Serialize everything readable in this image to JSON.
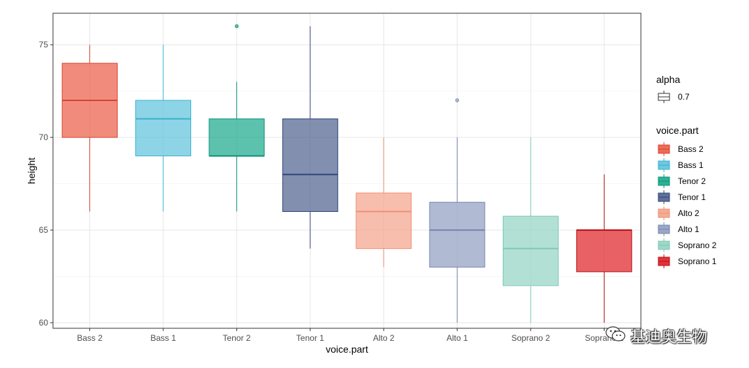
{
  "chart_data": {
    "type": "boxplot",
    "xlabel": "voice.part",
    "ylabel": "height",
    "ylim": [
      59.7,
      76.7
    ],
    "yticks": [
      60,
      65,
      70,
      75
    ],
    "grid": true,
    "legend_placement": "right",
    "categories": [
      "Bass 2",
      "Bass 1",
      "Tenor 2",
      "Tenor 1",
      "Alto 2",
      "Alto 1",
      "Soprano 2",
      "Soprano 1"
    ],
    "boxes": [
      {
        "name": "Bass 2",
        "min": 66,
        "q1": 70,
        "median": 72,
        "q3": 74,
        "max": 75,
        "outliers": [],
        "fill": "#EB5B46",
        "line": "#D6432E"
      },
      {
        "name": "Bass 1",
        "min": 66,
        "q1": 69,
        "median": 71,
        "q3": 72,
        "max": 75,
        "outliers": [],
        "fill": "#5CC3DC",
        "line": "#39B0CF"
      },
      {
        "name": "Tenor 2",
        "min": 66,
        "q1": 69,
        "median": 69,
        "q3": 71,
        "max": 73,
        "outliers": [
          76
        ],
        "fill": "#17A88C",
        "line": "#0D9276"
      },
      {
        "name": "Tenor 1",
        "min": 64,
        "q1": 66,
        "median": 68,
        "q3": 71,
        "max": 76,
        "outliers": [],
        "fill": "#4E5F8D",
        "line": "#2F447A"
      },
      {
        "name": "Alto 2",
        "min": 63,
        "q1": 64,
        "median": 66,
        "q3": 67,
        "max": 70,
        "outliers": [],
        "fill": "#F3A38B",
        "line": "#EF8E70"
      },
      {
        "name": "Alto 1",
        "min": 60,
        "q1": 63,
        "median": 65,
        "q3": 66.5,
        "max": 70,
        "outliers": [
          72
        ],
        "fill": "#8F9DBF",
        "line": "#7384AE"
      },
      {
        "name": "Soprano 2",
        "min": 60,
        "q1": 62,
        "median": 64,
        "q3": 65.75,
        "max": 70,
        "outliers": [],
        "fill": "#93D3C3",
        "line": "#7CC9B5"
      },
      {
        "name": "Soprano 1",
        "min": 60,
        "q1": 62.75,
        "median": 65,
        "q3": 65,
        "max": 68,
        "outliers": [],
        "fill": "#DE1E24",
        "line": "#B40F15"
      }
    ],
    "alpha": 0.7
  },
  "legend": {
    "alpha_title": "alpha",
    "alpha_label": "0.7",
    "voice_title": "voice.part",
    "items": [
      "Bass 2",
      "Bass 1",
      "Tenor 2",
      "Tenor 1",
      "Alto 2",
      "Alto 1",
      "Soprano 2",
      "Soprano 1"
    ]
  },
  "watermark": {
    "text": "基迪奥生物",
    "icon": "wechat-icon"
  }
}
